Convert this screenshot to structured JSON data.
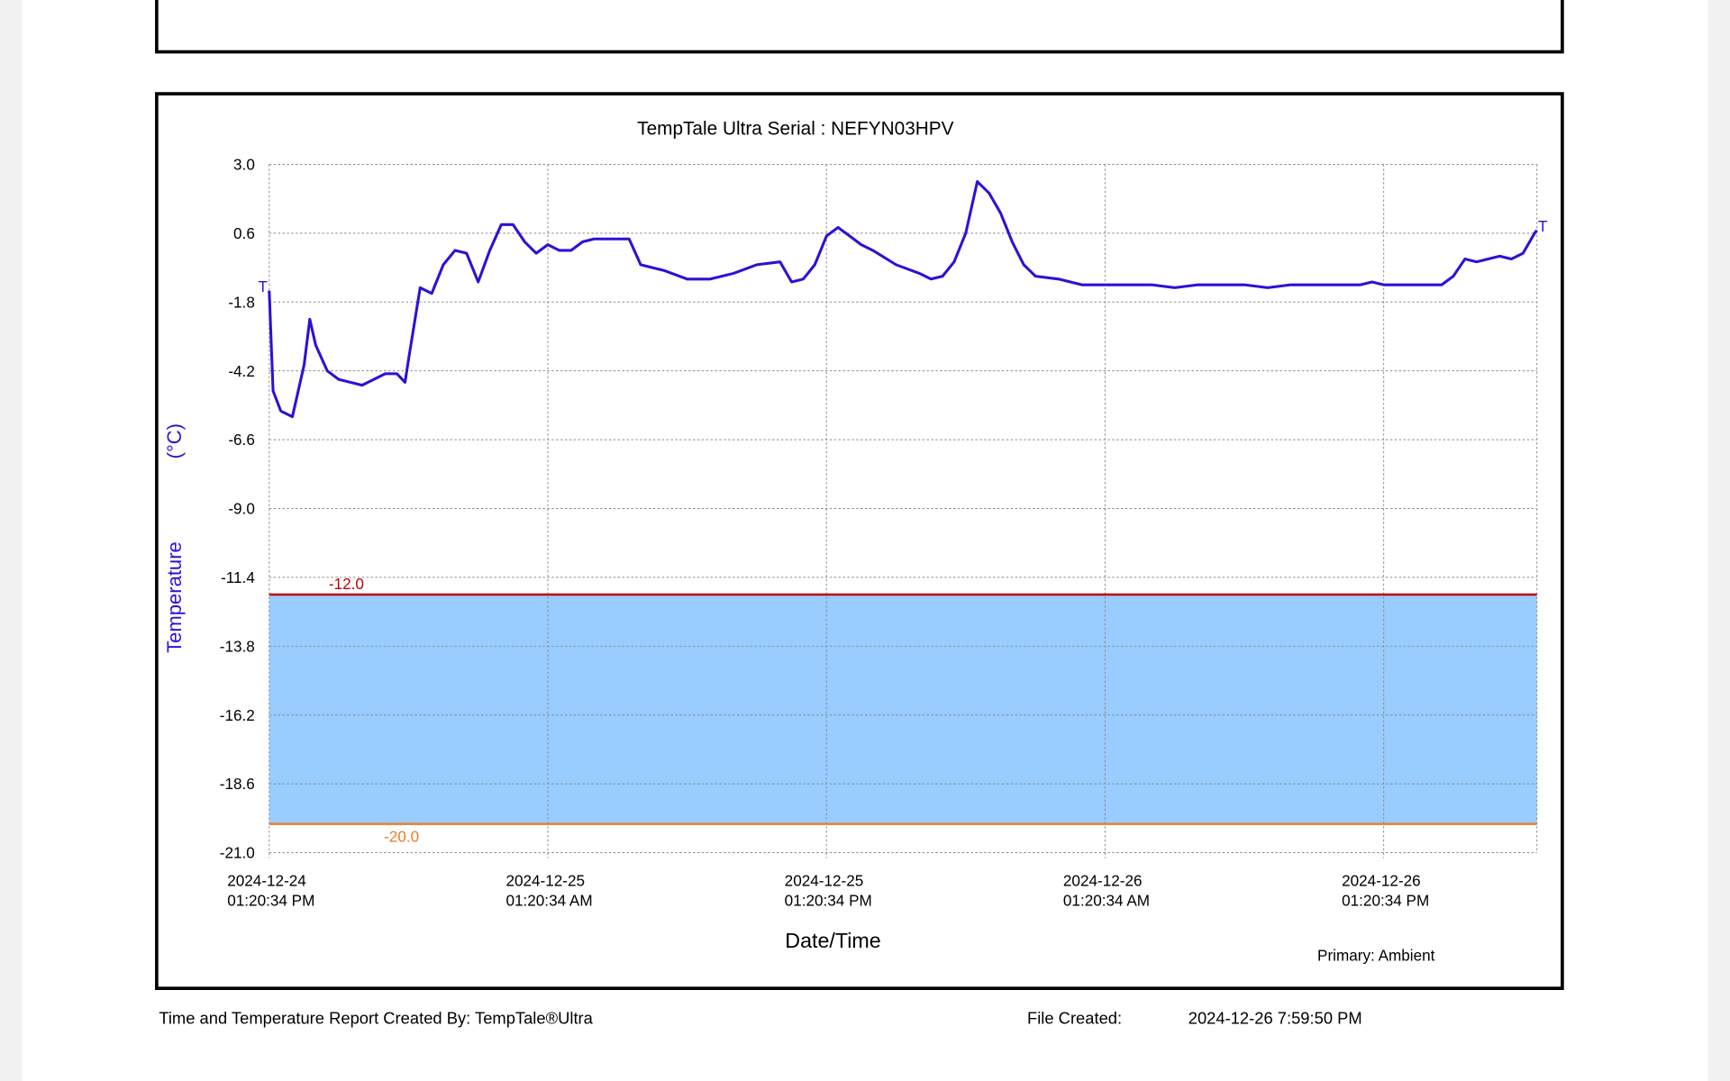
{
  "chart_data": {
    "type": "line",
    "title": "TempTale Ultra  Serial : NEFYN03HPV",
    "y_label": "Temperature",
    "y_unit": "(°C)",
    "x_label": "Date/Time",
    "sensor_note": "Primary: Ambient",
    "start_marker": "T",
    "end_marker": "T",
    "ylim": [
      -21,
      3
    ],
    "yticks": [
      {
        "value": -21,
        "label": "-21.0"
      },
      -18.6,
      -16.2,
      -13.8,
      -11.4,
      {
        "value": -9,
        "label": "-9.0"
      },
      -6.6,
      -4.2,
      -1.8,
      0.6,
      {
        "value": 3,
        "label": "3.0"
      }
    ],
    "xlim": [
      "2024-12-24T13:20:34",
      "2024-12-26T19:56:34"
    ],
    "xticks": [
      {
        "value": "2024-12-24T13:20:34",
        "label": "2024-12-24\n01:20:34 PM"
      },
      {
        "value": "2024-12-25T01:20:34",
        "label": "2024-12-25\n01:20:34 AM"
      },
      {
        "value": "2024-12-25T13:20:34",
        "label": "2024-12-25\n01:20:34 PM"
      },
      {
        "value": "2024-12-26T01:20:34",
        "label": "2024-12-26\n01:20:34 AM"
      },
      {
        "value": "2024-12-26T13:20:34",
        "label": "2024-12-26\n01:20:34 PM"
      }
    ],
    "grid": true,
    "thresholds": [
      {
        "value": -12,
        "label": "-12.0",
        "color": "#c00000"
      },
      {
        "value": -20,
        "label": "-20.0",
        "color": "#ee7d22"
      }
    ],
    "band_color": "#99ccff",
    "x": [
      "2024-12-24T13:20:34",
      "2024-12-24T13:30:34",
      "2024-12-24T13:50:34",
      "2024-12-24T14:20:34",
      "2024-12-24T14:50:34",
      "2024-12-24T15:05:34",
      "2024-12-24T15:20:34",
      "2024-12-24T15:50:34",
      "2024-12-24T16:20:34",
      "2024-12-24T17:20:34",
      "2024-12-24T18:20:34",
      "2024-12-24T18:50:34",
      "2024-12-24T19:11:34",
      "2024-12-24T19:20:34",
      "2024-12-24T19:50:34",
      "2024-12-24T20:20:34",
      "2024-12-24T20:50:34",
      "2024-12-24T21:20:34",
      "2024-12-24T21:50:34",
      "2024-12-24T22:20:34",
      "2024-12-24T22:50:34",
      "2024-12-24T23:20:34",
      "2024-12-24T23:50:34",
      "2024-12-25T00:20:34",
      "2024-12-25T00:50:34",
      "2024-12-25T01:20:34",
      "2024-12-25T01:50:34",
      "2024-12-25T02:20:34",
      "2024-12-25T02:50:34",
      "2024-12-25T03:20:34",
      "2024-12-25T04:20:34",
      "2024-12-25T04:50:34",
      "2024-12-25T05:20:34",
      "2024-12-25T06:20:34",
      "2024-12-25T07:20:34",
      "2024-12-25T08:20:34",
      "2024-12-25T09:20:34",
      "2024-12-25T10:20:34",
      "2024-12-25T11:20:34",
      "2024-12-25T11:50:34",
      "2024-12-25T12:20:34",
      "2024-12-25T12:50:34",
      "2024-12-25T13:20:34",
      "2024-12-25T13:50:34",
      "2024-12-25T14:20:34",
      "2024-12-25T14:50:34",
      "2024-12-25T15:20:34",
      "2024-12-25T16:20:34",
      "2024-12-25T17:20:34",
      "2024-12-25T17:50:34",
      "2024-12-25T18:20:34",
      "2024-12-25T18:50:34",
      "2024-12-25T19:20:34",
      "2024-12-25T19:50:34",
      "2024-12-25T20:20:34",
      "2024-12-25T20:50:34",
      "2024-12-25T21:20:34",
      "2024-12-25T21:50:34",
      "2024-12-25T22:20:34",
      "2024-12-25T23:20:34",
      "2024-12-26T00:20:34",
      "2024-12-26T01:20:34",
      "2024-12-26T03:20:34",
      "2024-12-26T04:20:34",
      "2024-12-26T05:20:34",
      "2024-12-26T07:20:34",
      "2024-12-26T08:20:34",
      "2024-12-26T09:20:34",
      "2024-12-26T12:20:34",
      "2024-12-26T12:50:34",
      "2024-12-26T13:20:34",
      "2024-12-26T15:50:34",
      "2024-12-26T16:20:34",
      "2024-12-26T16:50:34",
      "2024-12-26T17:20:34",
      "2024-12-26T17:50:34",
      "2024-12-26T18:20:34",
      "2024-12-26T18:50:34",
      "2024-12-26T19:20:34",
      "2024-12-26T19:50:34",
      "2024-12-26T19:56:34"
    ],
    "series": [
      {
        "name": "Ambient",
        "color": "#2b12d6",
        "values": [
          -1.4,
          -4.9,
          -5.6,
          -5.8,
          -4.0,
          -2.4,
          -3.3,
          -4.2,
          -4.5,
          -4.7,
          -4.3,
          -4.3,
          -4.6,
          -3.8,
          -1.3,
          -1.5,
          -0.5,
          0.0,
          -0.1,
          -1.1,
          0.0,
          0.9,
          0.9,
          0.3,
          -0.1,
          0.2,
          0.0,
          0.0,
          0.3,
          0.4,
          0.4,
          0.4,
          -0.5,
          -0.7,
          -1.0,
          -1.0,
          -0.8,
          -0.5,
          -0.4,
          -1.1,
          -1.0,
          -0.5,
          0.5,
          0.8,
          0.5,
          0.2,
          0.0,
          -0.5,
          -0.8,
          -1.0,
          -0.9,
          -0.4,
          0.6,
          2.4,
          2.0,
          1.3,
          0.3,
          -0.5,
          -0.9,
          -1.0,
          -1.2,
          -1.2,
          -1.2,
          -1.3,
          -1.2,
          -1.2,
          -1.3,
          -1.2,
          -1.2,
          -1.1,
          -1.2,
          -1.2,
          -0.9,
          -0.3,
          -0.4,
          -0.3,
          -0.2,
          -0.3,
          -0.1,
          0.6,
          0.7
        ]
      }
    ]
  },
  "footer": {
    "created_by": "Time and Temperature Report Created By:  TempTale®Ultra",
    "file_created_label": "File Created:",
    "file_created": "2024-12-26  7:59:50 PM"
  }
}
